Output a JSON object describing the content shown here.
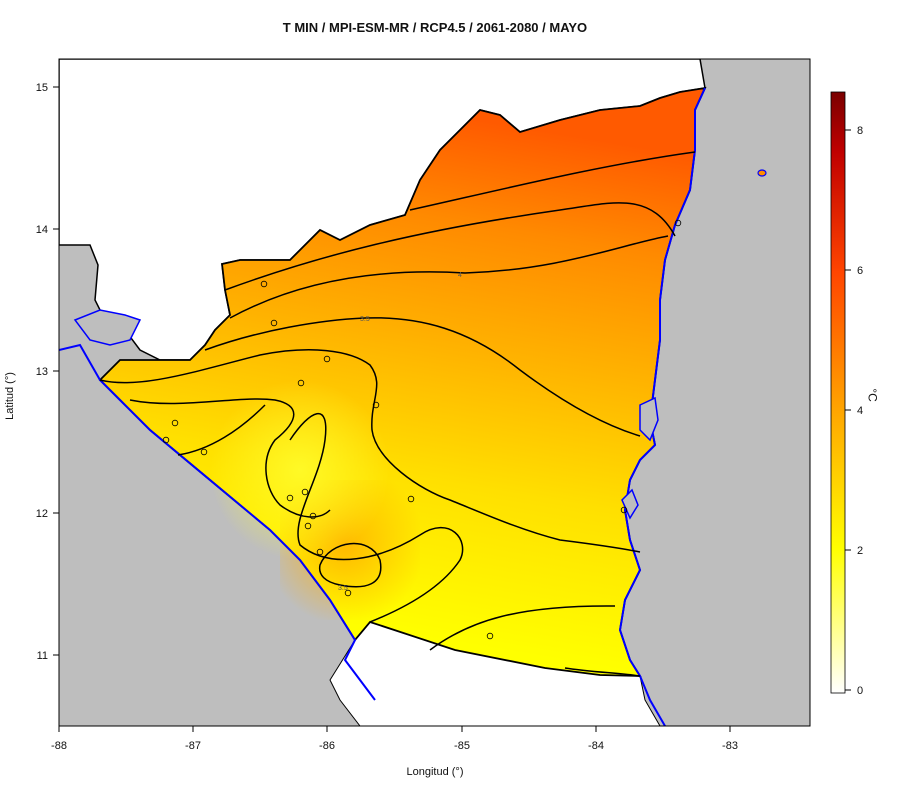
{
  "title": "T MIN / MPI-ESM-MR / RCP4.5 / 2061-2080 / MAYO",
  "x_axis": {
    "label": "Longitud (°)",
    "ticks": [
      "-88",
      "-87",
      "-86",
      "-85",
      "-84",
      "-83"
    ]
  },
  "y_axis": {
    "label": "Latitud (°)",
    "ticks": [
      "11",
      "12",
      "13",
      "14",
      "15"
    ]
  },
  "colorbar": {
    "unit": "°C",
    "ticks": [
      "0",
      "2",
      "4",
      "6",
      "8"
    ],
    "range": [
      -0.2,
      8.5
    ],
    "colors": [
      "#ffffff",
      "#ffff00",
      "#ffa500",
      "#ff4500",
      "#b00000",
      "#7a0000"
    ]
  },
  "map": {
    "region": "Nicaragua",
    "lon_range": [
      -88,
      -82.4
    ],
    "lat_range": [
      10.5,
      15.2
    ],
    "ocean_color": "#bebebe",
    "coast_color": "#0000ff",
    "contour_labels": [
      "4",
      "3.5",
      "3.5"
    ]
  }
}
